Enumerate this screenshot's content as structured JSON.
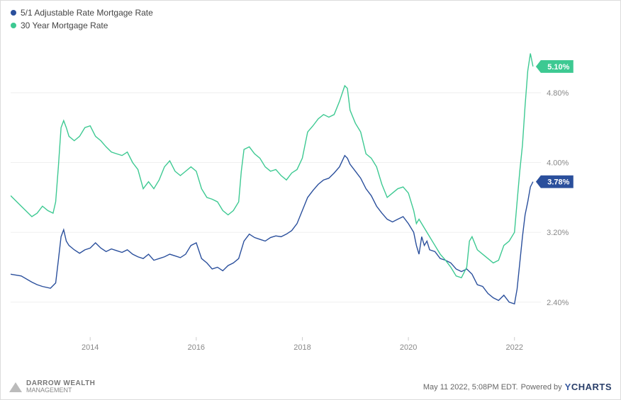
{
  "chart": {
    "type": "line",
    "background_color": "#ffffff",
    "border_color": "#dcdcdc",
    "grid_color": "#eeeeee",
    "axis_label_color": "#888888",
    "axis_fontsize": 11,
    "legend_fontsize": 12,
    "line_width": 1.4,
    "x": {
      "min": 2012.5,
      "max": 2022.5,
      "ticks": [
        2014,
        2016,
        2018,
        2020,
        2022
      ]
    },
    "y": {
      "min": 2.0,
      "max": 5.4,
      "ticks": [
        2.4,
        3.2,
        4.0,
        4.8
      ],
      "tick_labels": [
        "2.40%",
        "3.20%",
        "4.00%",
        "4.80%"
      ]
    },
    "series": [
      {
        "id": "arm51",
        "label": "5/1 Adjustable Rate Mortgage Rate",
        "color": "#2a4f9c",
        "end_value_label": "3.78%",
        "points": [
          [
            2012.5,
            2.72
          ],
          [
            2012.7,
            2.7
          ],
          [
            2012.9,
            2.63
          ],
          [
            2013.0,
            2.6
          ],
          [
            2013.1,
            2.58
          ],
          [
            2013.25,
            2.56
          ],
          [
            2013.35,
            2.62
          ],
          [
            2013.4,
            2.88
          ],
          [
            2013.45,
            3.15
          ],
          [
            2013.5,
            3.23
          ],
          [
            2013.55,
            3.1
          ],
          [
            2013.6,
            3.05
          ],
          [
            2013.7,
            3.0
          ],
          [
            2013.8,
            2.96
          ],
          [
            2013.9,
            3.0
          ],
          [
            2014.0,
            3.02
          ],
          [
            2014.1,
            3.08
          ],
          [
            2014.2,
            3.02
          ],
          [
            2014.3,
            2.98
          ],
          [
            2014.4,
            3.01
          ],
          [
            2014.5,
            2.99
          ],
          [
            2014.6,
            2.97
          ],
          [
            2014.7,
            3.0
          ],
          [
            2014.8,
            2.95
          ],
          [
            2014.9,
            2.92
          ],
          [
            2015.0,
            2.9
          ],
          [
            2015.1,
            2.95
          ],
          [
            2015.2,
            2.88
          ],
          [
            2015.3,
            2.9
          ],
          [
            2015.4,
            2.92
          ],
          [
            2015.5,
            2.95
          ],
          [
            2015.6,
            2.93
          ],
          [
            2015.7,
            2.91
          ],
          [
            2015.8,
            2.95
          ],
          [
            2015.9,
            3.05
          ],
          [
            2016.0,
            3.08
          ],
          [
            2016.1,
            2.9
          ],
          [
            2016.2,
            2.85
          ],
          [
            2016.3,
            2.78
          ],
          [
            2016.4,
            2.8
          ],
          [
            2016.5,
            2.76
          ],
          [
            2016.6,
            2.82
          ],
          [
            2016.7,
            2.85
          ],
          [
            2016.8,
            2.9
          ],
          [
            2016.9,
            3.1
          ],
          [
            2017.0,
            3.18
          ],
          [
            2017.1,
            3.14
          ],
          [
            2017.2,
            3.12
          ],
          [
            2017.3,
            3.1
          ],
          [
            2017.4,
            3.14
          ],
          [
            2017.5,
            3.16
          ],
          [
            2017.6,
            3.15
          ],
          [
            2017.7,
            3.18
          ],
          [
            2017.8,
            3.22
          ],
          [
            2017.9,
            3.3
          ],
          [
            2018.0,
            3.45
          ],
          [
            2018.1,
            3.6
          ],
          [
            2018.2,
            3.68
          ],
          [
            2018.3,
            3.75
          ],
          [
            2018.4,
            3.8
          ],
          [
            2018.5,
            3.82
          ],
          [
            2018.6,
            3.88
          ],
          [
            2018.7,
            3.95
          ],
          [
            2018.8,
            4.08
          ],
          [
            2018.85,
            4.05
          ],
          [
            2018.9,
            3.98
          ],
          [
            2019.0,
            3.9
          ],
          [
            2019.1,
            3.82
          ],
          [
            2019.2,
            3.7
          ],
          [
            2019.3,
            3.62
          ],
          [
            2019.4,
            3.5
          ],
          [
            2019.5,
            3.42
          ],
          [
            2019.6,
            3.35
          ],
          [
            2019.7,
            3.32
          ],
          [
            2019.8,
            3.35
          ],
          [
            2019.9,
            3.38
          ],
          [
            2020.0,
            3.3
          ],
          [
            2020.1,
            3.2
          ],
          [
            2020.15,
            3.05
          ],
          [
            2020.2,
            2.95
          ],
          [
            2020.25,
            3.15
          ],
          [
            2020.3,
            3.05
          ],
          [
            2020.35,
            3.1
          ],
          [
            2020.4,
            3.0
          ],
          [
            2020.5,
            2.98
          ],
          [
            2020.6,
            2.9
          ],
          [
            2020.7,
            2.88
          ],
          [
            2020.8,
            2.85
          ],
          [
            2020.9,
            2.78
          ],
          [
            2021.0,
            2.75
          ],
          [
            2021.1,
            2.78
          ],
          [
            2021.2,
            2.72
          ],
          [
            2021.3,
            2.6
          ],
          [
            2021.4,
            2.58
          ],
          [
            2021.5,
            2.5
          ],
          [
            2021.6,
            2.45
          ],
          [
            2021.7,
            2.42
          ],
          [
            2021.8,
            2.48
          ],
          [
            2021.9,
            2.4
          ],
          [
            2022.0,
            2.38
          ],
          [
            2022.05,
            2.55
          ],
          [
            2022.1,
            2.85
          ],
          [
            2022.15,
            3.15
          ],
          [
            2022.2,
            3.4
          ],
          [
            2022.25,
            3.55
          ],
          [
            2022.3,
            3.72
          ],
          [
            2022.35,
            3.78
          ]
        ]
      },
      {
        "id": "fixed30",
        "label": "30 Year Mortgage Rate",
        "color": "#3dc992",
        "end_value_label": "5.10%",
        "points": [
          [
            2012.5,
            3.62
          ],
          [
            2012.7,
            3.5
          ],
          [
            2012.9,
            3.38
          ],
          [
            2013.0,
            3.42
          ],
          [
            2013.1,
            3.5
          ],
          [
            2013.2,
            3.45
          ],
          [
            2013.3,
            3.42
          ],
          [
            2013.35,
            3.55
          ],
          [
            2013.4,
            3.95
          ],
          [
            2013.45,
            4.4
          ],
          [
            2013.5,
            4.48
          ],
          [
            2013.55,
            4.4
          ],
          [
            2013.6,
            4.3
          ],
          [
            2013.7,
            4.25
          ],
          [
            2013.8,
            4.3
          ],
          [
            2013.9,
            4.4
          ],
          [
            2014.0,
            4.42
          ],
          [
            2014.1,
            4.3
          ],
          [
            2014.2,
            4.25
          ],
          [
            2014.3,
            4.18
          ],
          [
            2014.4,
            4.12
          ],
          [
            2014.5,
            4.1
          ],
          [
            2014.6,
            4.08
          ],
          [
            2014.7,
            4.12
          ],
          [
            2014.8,
            4.0
          ],
          [
            2014.9,
            3.92
          ],
          [
            2015.0,
            3.7
          ],
          [
            2015.1,
            3.78
          ],
          [
            2015.2,
            3.7
          ],
          [
            2015.3,
            3.8
          ],
          [
            2015.4,
            3.95
          ],
          [
            2015.5,
            4.02
          ],
          [
            2015.6,
            3.9
          ],
          [
            2015.7,
            3.85
          ],
          [
            2015.8,
            3.9
          ],
          [
            2015.9,
            3.95
          ],
          [
            2016.0,
            3.9
          ],
          [
            2016.1,
            3.7
          ],
          [
            2016.2,
            3.6
          ],
          [
            2016.3,
            3.58
          ],
          [
            2016.4,
            3.55
          ],
          [
            2016.5,
            3.45
          ],
          [
            2016.6,
            3.4
          ],
          [
            2016.7,
            3.45
          ],
          [
            2016.8,
            3.55
          ],
          [
            2016.85,
            3.9
          ],
          [
            2016.9,
            4.15
          ],
          [
            2017.0,
            4.18
          ],
          [
            2017.1,
            4.1
          ],
          [
            2017.2,
            4.05
          ],
          [
            2017.3,
            3.95
          ],
          [
            2017.4,
            3.9
          ],
          [
            2017.5,
            3.92
          ],
          [
            2017.6,
            3.85
          ],
          [
            2017.7,
            3.8
          ],
          [
            2017.8,
            3.88
          ],
          [
            2017.9,
            3.92
          ],
          [
            2018.0,
            4.05
          ],
          [
            2018.1,
            4.35
          ],
          [
            2018.2,
            4.42
          ],
          [
            2018.3,
            4.5
          ],
          [
            2018.4,
            4.55
          ],
          [
            2018.5,
            4.52
          ],
          [
            2018.6,
            4.55
          ],
          [
            2018.7,
            4.7
          ],
          [
            2018.8,
            4.88
          ],
          [
            2018.85,
            4.85
          ],
          [
            2018.9,
            4.6
          ],
          [
            2019.0,
            4.45
          ],
          [
            2019.1,
            4.35
          ],
          [
            2019.2,
            4.1
          ],
          [
            2019.3,
            4.05
          ],
          [
            2019.4,
            3.95
          ],
          [
            2019.5,
            3.75
          ],
          [
            2019.6,
            3.6
          ],
          [
            2019.7,
            3.65
          ],
          [
            2019.8,
            3.7
          ],
          [
            2019.9,
            3.72
          ],
          [
            2020.0,
            3.65
          ],
          [
            2020.1,
            3.45
          ],
          [
            2020.15,
            3.3
          ],
          [
            2020.2,
            3.35
          ],
          [
            2020.25,
            3.3
          ],
          [
            2020.3,
            3.25
          ],
          [
            2020.4,
            3.15
          ],
          [
            2020.5,
            3.05
          ],
          [
            2020.6,
            2.95
          ],
          [
            2020.7,
            2.88
          ],
          [
            2020.8,
            2.8
          ],
          [
            2020.9,
            2.7
          ],
          [
            2021.0,
            2.68
          ],
          [
            2021.1,
            2.8
          ],
          [
            2021.15,
            3.1
          ],
          [
            2021.2,
            3.15
          ],
          [
            2021.3,
            3.0
          ],
          [
            2021.4,
            2.95
          ],
          [
            2021.5,
            2.9
          ],
          [
            2021.6,
            2.85
          ],
          [
            2021.7,
            2.88
          ],
          [
            2021.8,
            3.05
          ],
          [
            2021.9,
            3.1
          ],
          [
            2022.0,
            3.2
          ],
          [
            2022.05,
            3.55
          ],
          [
            2022.1,
            3.9
          ],
          [
            2022.15,
            4.2
          ],
          [
            2022.2,
            4.65
          ],
          [
            2022.25,
            5.05
          ],
          [
            2022.3,
            5.25
          ],
          [
            2022.35,
            5.1
          ]
        ]
      }
    ]
  },
  "footer": {
    "left_logo": {
      "line1": "DARROW WEALTH",
      "line2": "MANAGEMENT"
    },
    "timestamp": "May 11 2022, 5:08PM EDT.",
    "powered_by_prefix": "Powered by",
    "powered_by_brand": "YCHARTS"
  }
}
